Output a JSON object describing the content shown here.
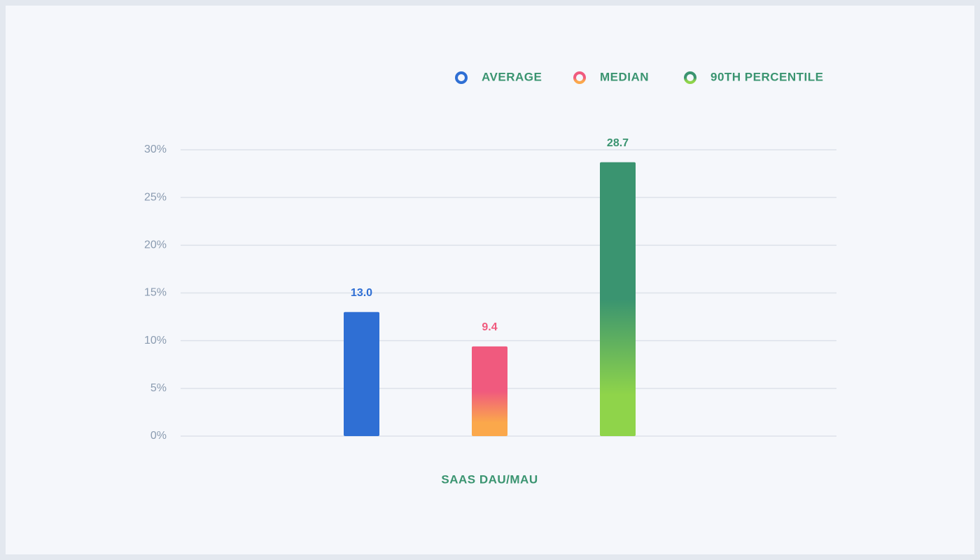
{
  "chart_data": {
    "type": "bar",
    "categories": [
      "SAAS DAU/MAU"
    ],
    "series": [
      {
        "name": "AVERAGE",
        "color": "#2f6fd4",
        "values": [
          13.0
        ],
        "value_labels": [
          "13.0"
        ]
      },
      {
        "name": "MEDIAN",
        "color": "#f05a7e",
        "gradient": [
          "#f05a7e",
          "#fba84b"
        ],
        "values": [
          9.4
        ],
        "value_labels": [
          "9.4"
        ]
      },
      {
        "name": "90TH PERCENTILE",
        "color": "#3a9470",
        "gradient": [
          "#3a9470",
          "#8fd44a"
        ],
        "values": [
          28.7
        ],
        "value_labels": [
          "28.7"
        ]
      }
    ],
    "ylim": [
      0,
      30
    ],
    "yticks": [
      {
        "value": 0,
        "label": "0%"
      },
      {
        "value": 5,
        "label": "5%"
      },
      {
        "value": 10,
        "label": "10%"
      },
      {
        "value": 15,
        "label": "15%"
      },
      {
        "value": 20,
        "label": "20%"
      },
      {
        "value": 25,
        "label": "25%"
      },
      {
        "value": 30,
        "label": "30%"
      }
    ],
    "grid": true,
    "legend": "top-right"
  }
}
